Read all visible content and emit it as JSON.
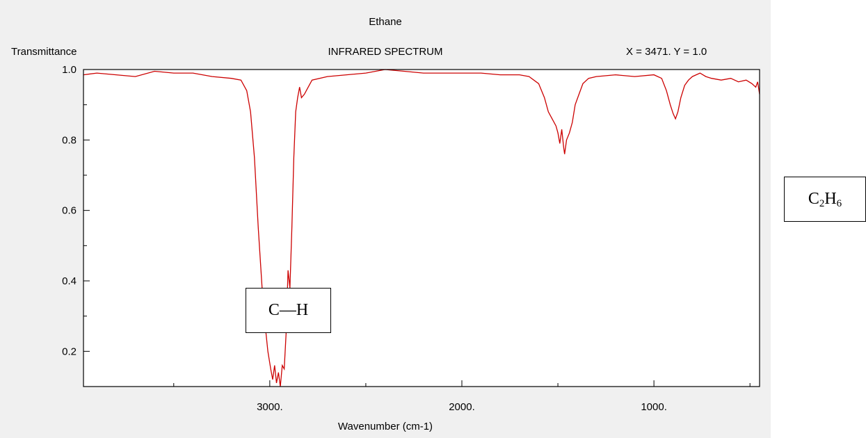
{
  "window": {
    "title": "Ethane",
    "subtitle": "INFRARED SPECTRUM",
    "ylabel": "Transmittance",
    "readout": "X = 3471.   Y = 1.0",
    "xlabel": "Wavenumber (cm-1)"
  },
  "annotations": {
    "bond_label": "C—H",
    "formula": {
      "c": "C",
      "c_count": "2",
      "h": "H",
      "h_count": "6"
    }
  },
  "colors": {
    "line": "#cc0000",
    "panel": "#f0f0f0",
    "axis": "#000000"
  },
  "chart_data": {
    "type": "line",
    "title": "Ethane",
    "subtitle": "INFRARED SPECTRUM",
    "xlabel": "Wavenumber (cm-1)",
    "ylabel": "Transmittance",
    "xlim": [
      3970,
      450
    ],
    "ylim": [
      0.1,
      1.0
    ],
    "x_reversed": true,
    "grid": false,
    "xticks": [
      {
        "value": 3000,
        "label": "3000."
      },
      {
        "value": 2000,
        "label": "2000."
      },
      {
        "value": 1000,
        "label": "1000."
      }
    ],
    "yticks": [
      {
        "value": 1.0,
        "label": "1.0"
      },
      {
        "value": 0.8,
        "label": "0.8"
      },
      {
        "value": 0.6,
        "label": "0.6"
      },
      {
        "value": 0.4,
        "label": "0.4"
      },
      {
        "value": 0.2,
        "label": "0.2"
      }
    ],
    "series": [
      {
        "color": "#cc0000",
        "points": [
          [
            3970,
            0.985
          ],
          [
            3900,
            0.99
          ],
          [
            3800,
            0.985
          ],
          [
            3700,
            0.98
          ],
          [
            3600,
            0.995
          ],
          [
            3500,
            0.99
          ],
          [
            3400,
            0.99
          ],
          [
            3300,
            0.98
          ],
          [
            3200,
            0.975
          ],
          [
            3150,
            0.97
          ],
          [
            3120,
            0.94
          ],
          [
            3100,
            0.88
          ],
          [
            3080,
            0.75
          ],
          [
            3060,
            0.55
          ],
          [
            3040,
            0.38
          ],
          [
            3025,
            0.28
          ],
          [
            3010,
            0.2
          ],
          [
            2995,
            0.15
          ],
          [
            2985,
            0.12
          ],
          [
            2975,
            0.16
          ],
          [
            2965,
            0.11
          ],
          [
            2955,
            0.14
          ],
          [
            2945,
            0.1
          ],
          [
            2935,
            0.16
          ],
          [
            2925,
            0.15
          ],
          [
            2915,
            0.25
          ],
          [
            2905,
            0.43
          ],
          [
            2895,
            0.38
          ],
          [
            2885,
            0.55
          ],
          [
            2875,
            0.75
          ],
          [
            2865,
            0.88
          ],
          [
            2855,
            0.92
          ],
          [
            2845,
            0.95
          ],
          [
            2835,
            0.92
          ],
          [
            2820,
            0.93
          ],
          [
            2800,
            0.95
          ],
          [
            2780,
            0.97
          ],
          [
            2700,
            0.98
          ],
          [
            2600,
            0.985
          ],
          [
            2500,
            0.99
          ],
          [
            2400,
            1.0
          ],
          [
            2300,
            0.995
          ],
          [
            2200,
            0.99
          ],
          [
            2100,
            0.99
          ],
          [
            2000,
            0.99
          ],
          [
            1900,
            0.99
          ],
          [
            1800,
            0.985
          ],
          [
            1700,
            0.985
          ],
          [
            1650,
            0.98
          ],
          [
            1600,
            0.96
          ],
          [
            1570,
            0.92
          ],
          [
            1550,
            0.88
          ],
          [
            1530,
            0.86
          ],
          [
            1510,
            0.84
          ],
          [
            1500,
            0.82
          ],
          [
            1490,
            0.79
          ],
          [
            1480,
            0.83
          ],
          [
            1470,
            0.78
          ],
          [
            1465,
            0.76
          ],
          [
            1455,
            0.8
          ],
          [
            1440,
            0.82
          ],
          [
            1425,
            0.85
          ],
          [
            1410,
            0.9
          ],
          [
            1390,
            0.93
          ],
          [
            1370,
            0.96
          ],
          [
            1340,
            0.975
          ],
          [
            1300,
            0.98
          ],
          [
            1200,
            0.985
          ],
          [
            1100,
            0.98
          ],
          [
            1000,
            0.985
          ],
          [
            960,
            0.975
          ],
          [
            935,
            0.94
          ],
          [
            915,
            0.9
          ],
          [
            900,
            0.875
          ],
          [
            888,
            0.86
          ],
          [
            875,
            0.88
          ],
          [
            860,
            0.92
          ],
          [
            840,
            0.955
          ],
          [
            820,
            0.97
          ],
          [
            800,
            0.98
          ],
          [
            780,
            0.985
          ],
          [
            760,
            0.99
          ],
          [
            745,
            0.985
          ],
          [
            730,
            0.98
          ],
          [
            700,
            0.975
          ],
          [
            650,
            0.97
          ],
          [
            600,
            0.975
          ],
          [
            560,
            0.965
          ],
          [
            520,
            0.97
          ],
          [
            490,
            0.96
          ],
          [
            470,
            0.95
          ],
          [
            460,
            0.965
          ],
          [
            450,
            0.93
          ]
        ]
      }
    ]
  }
}
